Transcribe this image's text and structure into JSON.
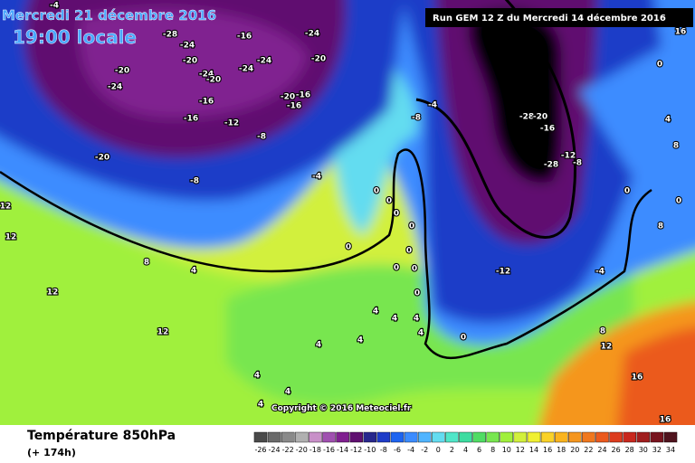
{
  "header": {
    "date": "Mercredi 21 décembre 2016",
    "time": "19:00 locale",
    "run": "Run GEM 12 Z du Mercredi 14 décembre 2016"
  },
  "footer": {
    "title": "Température 850hPa",
    "lead": "(+ 174h)"
  },
  "copyright": "Copyright © 2016 Meteociel.fr",
  "legend": {
    "labels": [
      "-26",
      "-24",
      "-22",
      "-20",
      "-18",
      "-16",
      "-14",
      "-12",
      "-10",
      "-8",
      "-6",
      "-4",
      "-2",
      "0",
      "2",
      "4",
      "6",
      "8",
      "10",
      "12",
      "14",
      "16",
      "18",
      "20",
      "22",
      "24",
      "26",
      "28",
      "30",
      "32",
      "34"
    ],
    "colors": [
      "#4a4a4a",
      "#6a6a6a",
      "#8a8a8a",
      "#b0b0b0",
      "#c890c8",
      "#a050b0",
      "#802090",
      "#601070",
      "#28288c",
      "#1e3cc8",
      "#1e64f0",
      "#3c8cff",
      "#50b4ff",
      "#64dcf0",
      "#50e6c8",
      "#3cdca0",
      "#50dc64",
      "#78e650",
      "#a0f03c",
      "#d2f03c",
      "#f0f032",
      "#fad228",
      "#fab41e",
      "#f5961e",
      "#f0781e",
      "#eb5a1e",
      "#dc3c1e",
      "#c8281e",
      "#a01e1e",
      "#78141e",
      "#50141e"
    ]
  },
  "contour_labels": [
    "-4",
    "-28",
    "-24",
    "-16",
    "-24",
    "-20",
    "-24",
    "-20",
    "-24",
    "-24",
    "-20",
    "-20",
    "-24",
    "-16",
    "-20",
    "-16",
    "-16",
    "-16",
    "-12",
    "-8",
    "-20",
    "-8",
    "-4",
    "12",
    "12",
    "8",
    "4",
    "12",
    "12",
    "0",
    "0",
    "0",
    "0",
    "0",
    "0",
    "0",
    "0",
    "0",
    "4",
    "4",
    "4",
    "4",
    "4",
    "4",
    "0",
    "4",
    "4",
    "4",
    "-8",
    "-4",
    "-28",
    "-20",
    "-16",
    "-12",
    "-8",
    "-28",
    "-12",
    "-4",
    "0",
    "0",
    "8",
    "0",
    "16",
    "4",
    "8",
    "8",
    "12",
    "16",
    "16"
  ]
}
